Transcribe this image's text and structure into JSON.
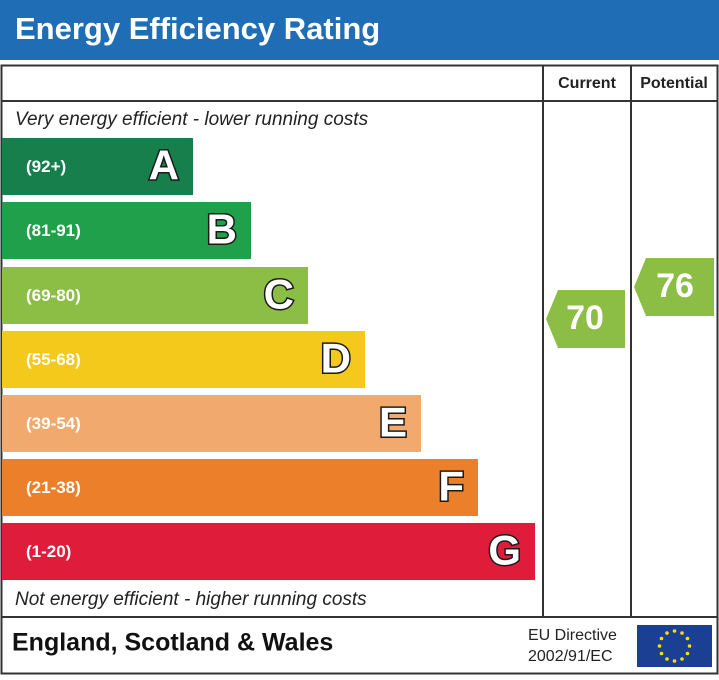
{
  "title": "Energy Efficiency Rating",
  "columns": [
    "Current",
    "Potential"
  ],
  "top_note": "Very energy efficient - lower running costs",
  "bottom_note": "Not energy efficient - higher running costs",
  "bands": [
    {
      "range": "(92+)",
      "letter": "A",
      "color": "#177f4c"
    },
    {
      "range": "(81-91)",
      "letter": "B",
      "color": "#21a04b"
    },
    {
      "range": "(69-80)",
      "letter": "C",
      "color": "#8cbd45"
    },
    {
      "range": "(55-68)",
      "letter": "D",
      "color": "#f4c91c"
    },
    {
      "range": "(39-54)",
      "letter": "E",
      "color": "#f1a96d"
    },
    {
      "range": "(21-38)",
      "letter": "F",
      "color": "#eb7f2a"
    },
    {
      "range": "(1-20)",
      "letter": "G",
      "color": "#e01c3b"
    }
  ],
  "current": {
    "value": "70",
    "color": "#8cbd45"
  },
  "potential": {
    "value": "76",
    "color": "#8cbd45"
  },
  "footer": {
    "region": "England, Scotland & Wales",
    "directive_line1": "EU Directive",
    "directive_line2": "2002/91/EC"
  }
}
